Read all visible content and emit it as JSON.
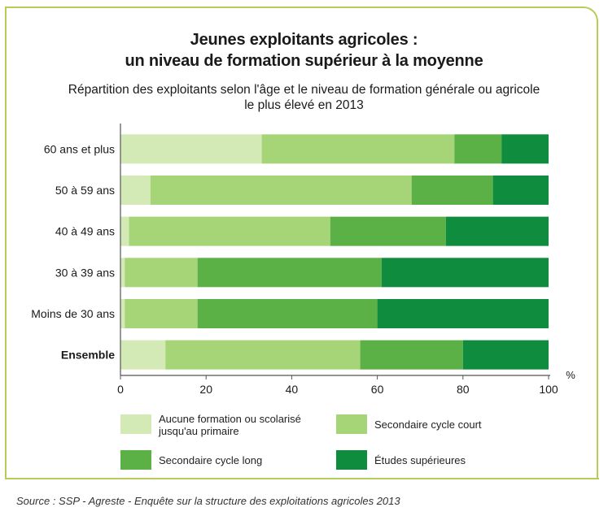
{
  "title": {
    "line1": "Jeunes exploitants agricoles :",
    "line2": "un niveau de formation supérieur à la moyenne"
  },
  "subtitle": {
    "line1": "Répartition des exploitants selon l'âge et le niveau de formation générale ou agricole",
    "line2": "le plus élevé en 2013"
  },
  "source": "Source : SSP - Agreste - Enquête sur la structure des exploitations agricoles 2013",
  "colors": {
    "frame": "#b9cc57",
    "axis": "#555555"
  },
  "chart_data": {
    "type": "bar",
    "orientation": "horizontal",
    "stacked": true,
    "unit_label": "%",
    "xlim": [
      0,
      100
    ],
    "xticks": [
      "0",
      "20",
      "40",
      "60",
      "80",
      "100"
    ],
    "categories": [
      "60 ans et plus",
      "50 à 59 ans",
      "40 à 49 ans",
      "30 à 39 ans",
      "Moins de 30 ans",
      "Ensemble"
    ],
    "bold_categories": [
      "Ensemble"
    ],
    "series": [
      {
        "name": "Aucune formation ou scolarisé jusqu'au primaire",
        "color": "#d3e9b6",
        "values": [
          33,
          7,
          2,
          1,
          1,
          10.5
        ]
      },
      {
        "name": "Secondaire cycle court",
        "color": "#a6d578",
        "values": [
          45,
          61,
          47,
          17,
          17,
          45.5
        ]
      },
      {
        "name": "Secondaire cycle long",
        "color": "#5bb046",
        "values": [
          11,
          19,
          27,
          43,
          42,
          24
        ]
      },
      {
        "name": "Études supérieures",
        "color": "#0f8c3e",
        "values": [
          11,
          13,
          24,
          39,
          40,
          20
        ]
      }
    ],
    "legend": {
      "position": "bottom",
      "items": [
        {
          "label_line1": "Aucune formation ou scolarisé",
          "label_line2": "jusqu'au primaire"
        },
        {
          "label_line1": "Secondaire cycle court",
          "label_line2": ""
        },
        {
          "label_line1": "Secondaire cycle long",
          "label_line2": ""
        },
        {
          "label_line1": "Études supérieures",
          "label_line2": ""
        }
      ]
    }
  }
}
